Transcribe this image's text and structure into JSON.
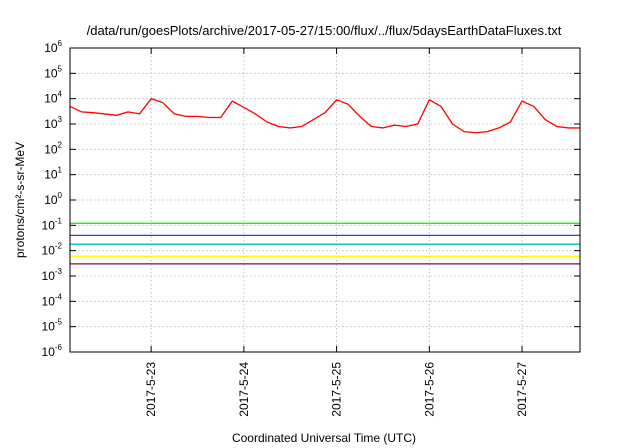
{
  "chart_data": {
    "type": "line",
    "title": "/data/run/goesPlots/archive/2017-05-27/15:00/flux/../flux/5daysEarthDataFluxes.txt",
    "xlabel": "Coordinated Universal Time (UTC)",
    "ylabel": "protons/cm²-s-sr-MeV",
    "y_scale": "log",
    "ylim": [
      1e-06,
      1000000.0
    ],
    "xlim": [
      "2017-05-22T03:00",
      "2017-05-27T15:00"
    ],
    "x_ticks": [
      "2017-5-23",
      "2017-5-24",
      "2017-5-25",
      "2017-5-26",
      "2017-5-27"
    ],
    "y_ticks": [
      {
        "base": "10",
        "exp": "6"
      },
      {
        "base": "10",
        "exp": "5"
      },
      {
        "base": "10",
        "exp": "4"
      },
      {
        "base": "10",
        "exp": "3"
      },
      {
        "base": "10",
        "exp": "2"
      },
      {
        "base": "10",
        "exp": "1"
      },
      {
        "base": "10",
        "exp": "0"
      },
      {
        "base": "10",
        "exp": "-1"
      },
      {
        "base": "10",
        "exp": "-2"
      },
      {
        "base": "10",
        "exp": "-3"
      },
      {
        "base": "10",
        "exp": "-4"
      },
      {
        "base": "10",
        "exp": "-5"
      },
      {
        "base": "10",
        "exp": "-6"
      }
    ],
    "grid": true,
    "series": [
      {
        "color": "#ff0000",
        "x": [
          "2017-05-22T03:00",
          "2017-05-22T06:00",
          "2017-05-22T09:00",
          "2017-05-22T12:00",
          "2017-05-22T15:00",
          "2017-05-22T18:00",
          "2017-05-22T21:00",
          "2017-05-23T00:00",
          "2017-05-23T03:00",
          "2017-05-23T06:00",
          "2017-05-23T09:00",
          "2017-05-23T12:00",
          "2017-05-23T15:00",
          "2017-05-23T18:00",
          "2017-05-23T21:00",
          "2017-05-24T00:00",
          "2017-05-24T03:00",
          "2017-05-24T06:00",
          "2017-05-24T09:00",
          "2017-05-24T12:00",
          "2017-05-24T15:00",
          "2017-05-24T18:00",
          "2017-05-24T21:00",
          "2017-05-25T00:00",
          "2017-05-25T03:00",
          "2017-05-25T06:00",
          "2017-05-25T09:00",
          "2017-05-25T12:00",
          "2017-05-25T15:00",
          "2017-05-25T18:00",
          "2017-05-25T21:00",
          "2017-05-26T00:00",
          "2017-05-26T03:00",
          "2017-05-26T06:00",
          "2017-05-26T09:00",
          "2017-05-26T12:00",
          "2017-05-26T15:00",
          "2017-05-26T18:00",
          "2017-05-26T21:00",
          "2017-05-27T00:00",
          "2017-05-27T03:00",
          "2017-05-27T06:00",
          "2017-05-27T09:00",
          "2017-05-27T12:00",
          "2017-05-27T15:00"
        ],
        "values": [
          5000,
          3000,
          2800,
          2500,
          2200,
          3000,
          2500,
          10000,
          7000,
          2500,
          2000,
          2000,
          1800,
          1800,
          8000,
          4500,
          2500,
          1200,
          800,
          700,
          800,
          1500,
          2800,
          9000,
          6000,
          2000,
          800,
          700,
          900,
          800,
          1000,
          9000,
          5000,
          1000,
          500,
          450,
          500,
          700,
          1200,
          8000,
          5000,
          1500,
          800,
          700,
          700
        ]
      },
      {
        "color": "#00ff00",
        "x": [
          "2017-05-22T03:00",
          "2017-05-27T15:00"
        ],
        "values": [
          0.12,
          0.12
        ]
      },
      {
        "color": "#0050ff",
        "x": [
          "2017-05-22T03:00",
          "2017-05-27T15:00"
        ],
        "values": [
          0.04,
          0.04
        ]
      },
      {
        "color": "#00c0c0",
        "x": [
          "2017-05-22T03:00",
          "2017-05-27T15:00"
        ],
        "values": [
          0.018,
          0.018
        ]
      },
      {
        "color": "#ffff00",
        "x": [
          "2017-05-22T03:00",
          "2017-05-27T15:00"
        ],
        "values": [
          0.006,
          0.006
        ]
      },
      {
        "color": "#800060",
        "x": [
          "2017-05-22T03:00",
          "2017-05-27T15:00"
        ],
        "values": [
          0.003,
          0.003
        ]
      }
    ]
  }
}
